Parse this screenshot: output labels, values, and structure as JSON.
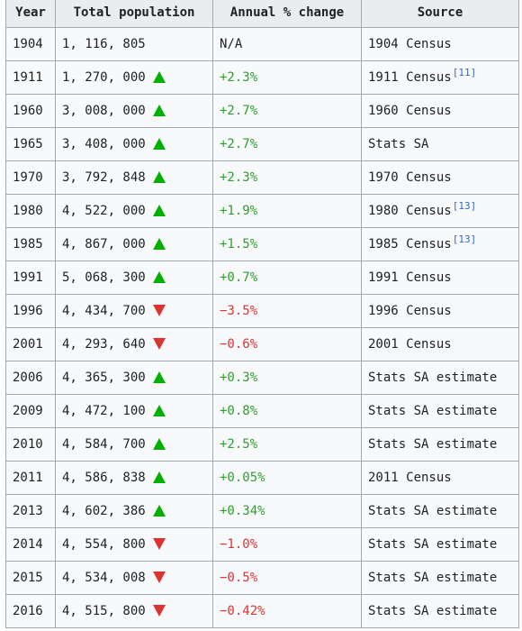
{
  "table": {
    "headers": [
      "Year",
      "Total population",
      "Annual % change",
      "Source"
    ],
    "colors": {
      "increase": "#00b000",
      "decrease": "#dd3333",
      "reference_link": "#3366cc"
    },
    "rows": [
      {
        "year": "1904",
        "population": "1, 116, 805",
        "trend": "none",
        "change": "N/A",
        "source": "1904 Census",
        "ref": ""
      },
      {
        "year": "1911",
        "population": "1, 270, 000",
        "trend": "up",
        "change": "+2.3%",
        "source": "1911 Census",
        "ref": "[11]"
      },
      {
        "year": "1960",
        "population": "3, 008, 000",
        "trend": "up",
        "change": "+2.7%",
        "source": "1960 Census",
        "ref": ""
      },
      {
        "year": "1965",
        "population": "3, 408, 000",
        "trend": "up",
        "change": "+2.7%",
        "source": "Stats SA",
        "ref": ""
      },
      {
        "year": "1970",
        "population": "3, 792, 848",
        "trend": "up",
        "change": "+2.3%",
        "source": "1970 Census",
        "ref": ""
      },
      {
        "year": "1980",
        "population": "4, 522, 000",
        "trend": "up",
        "change": "+1.9%",
        "source": "1980 Census",
        "ref": "[13]"
      },
      {
        "year": "1985",
        "population": "4, 867, 000",
        "trend": "up",
        "change": "+1.5%",
        "source": "1985 Census",
        "ref": "[13]"
      },
      {
        "year": "1991",
        "population": "5, 068, 300",
        "trend": "up",
        "change": "+0.7%",
        "source": "1991 Census",
        "ref": ""
      },
      {
        "year": "1996",
        "population": "4, 434, 700",
        "trend": "down",
        "change": "−3.5%",
        "source": "1996 Census",
        "ref": ""
      },
      {
        "year": "2001",
        "population": "4, 293, 640",
        "trend": "down",
        "change": "−0.6%",
        "source": "2001 Census",
        "ref": ""
      },
      {
        "year": "2006",
        "population": "4, 365, 300",
        "trend": "up",
        "change": "+0.3%",
        "source": "Stats SA estimate",
        "ref": ""
      },
      {
        "year": "2009",
        "population": "4, 472, 100",
        "trend": "up",
        "change": "+0.8%",
        "source": "Stats SA estimate",
        "ref": ""
      },
      {
        "year": "2010",
        "population": "4, 584, 700",
        "trend": "up",
        "change": "+2.5%",
        "source": "Stats SA estimate",
        "ref": ""
      },
      {
        "year": "2011",
        "population": "4, 586, 838",
        "trend": "up",
        "change": "+0.05%",
        "source": "2011 Census",
        "ref": ""
      },
      {
        "year": "2013",
        "population": "4, 602, 386",
        "trend": "up",
        "change": "+0.34%",
        "source": "Stats SA estimate",
        "ref": ""
      },
      {
        "year": "2014",
        "population": "4, 554, 800",
        "trend": "down",
        "change": "−1.0%",
        "source": "Stats SA estimate",
        "ref": ""
      },
      {
        "year": "2015",
        "population": "4, 534, 008",
        "trend": "down",
        "change": "−0.5%",
        "source": "Stats SA estimate",
        "ref": ""
      },
      {
        "year": "2016",
        "population": "4, 515, 800",
        "trend": "down",
        "change": "−0.42%",
        "source": "Stats SA estimate",
        "ref": ""
      }
    ]
  }
}
